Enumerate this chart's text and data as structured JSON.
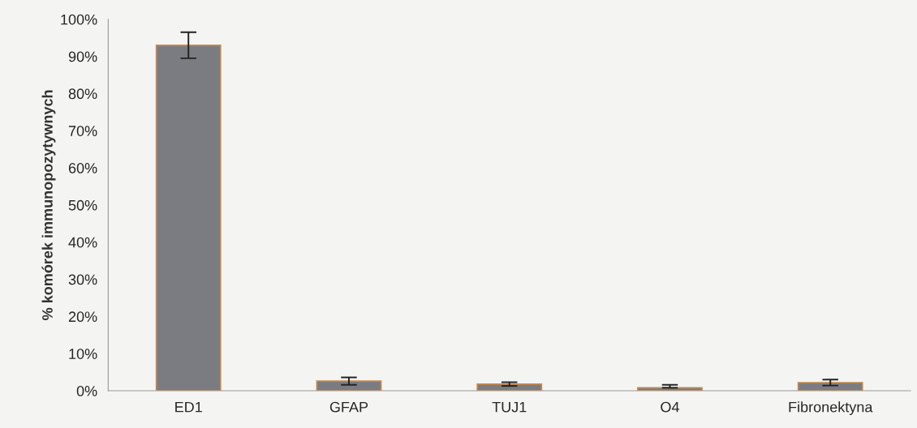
{
  "chart_data": {
    "type": "bar",
    "ylabel": "% komórek immunopozytywnych",
    "categories": [
      "ED1",
      "GFAP",
      "TUJ1",
      "O4",
      "Fibronektyna"
    ],
    "values": [
      93.0,
      2.6,
      1.8,
      0.8,
      2.2
    ],
    "errors": [
      3.5,
      1.0,
      0.5,
      [
        0.8,
        1.6
      ],
      0.8
    ],
    "color": "#7b7c82",
    "ylim": [
      0,
      100
    ],
    "yticks": [
      {
        "value": 0,
        "label": "0%"
      },
      {
        "value": 10,
        "label": "10%"
      },
      {
        "value": 20,
        "label": "20%"
      },
      {
        "value": 30,
        "label": "30%"
      },
      {
        "value": 40,
        "label": "40%"
      },
      {
        "value": 50,
        "label": "50%"
      },
      {
        "value": 60,
        "label": "60%"
      },
      {
        "value": 70,
        "label": "70%"
      },
      {
        "value": 80,
        "label": "80%"
      },
      {
        "value": 90,
        "label": "90%"
      },
      {
        "value": 100,
        "label": "100%"
      }
    ],
    "grid": false,
    "legend": false
  }
}
